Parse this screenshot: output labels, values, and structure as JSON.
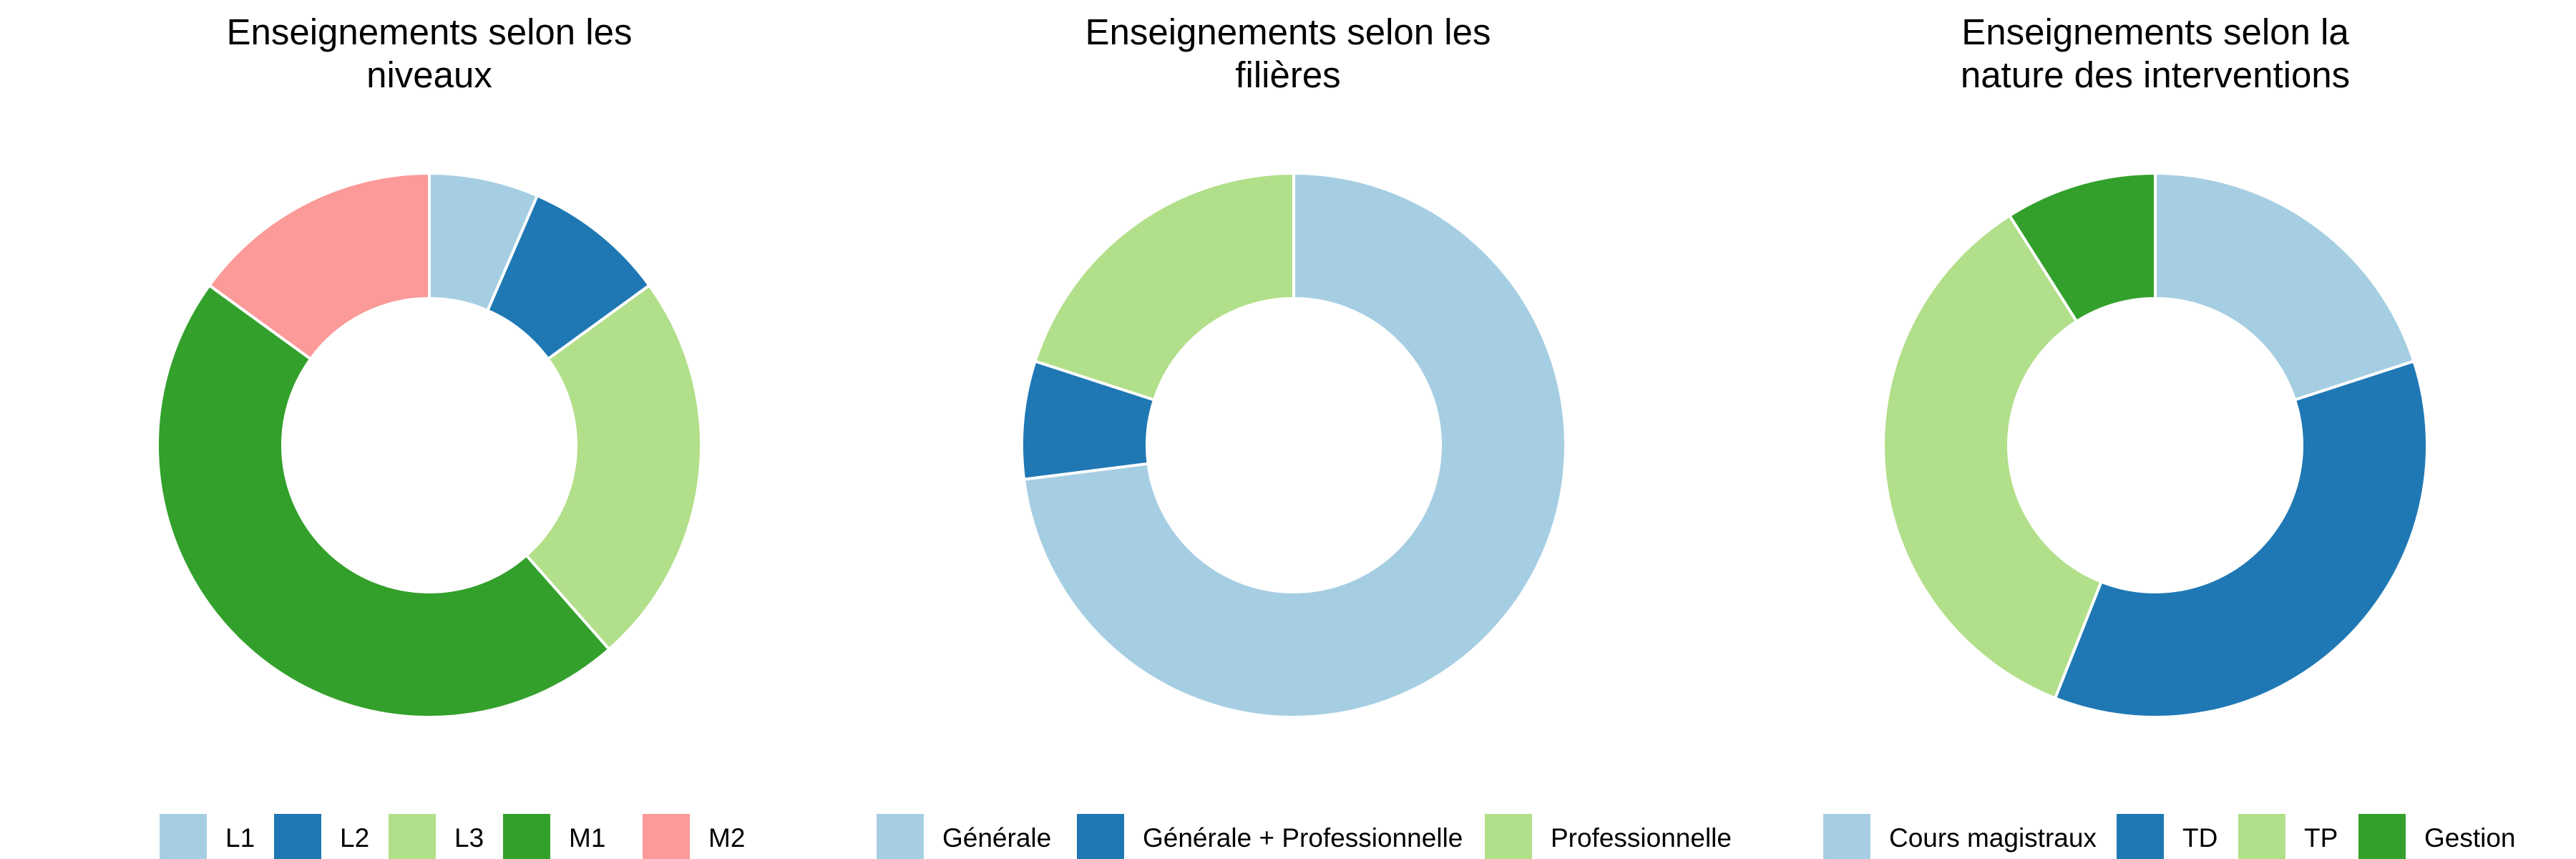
{
  "chart_data": [
    {
      "type": "pie",
      "title": "Enseignements selon les niveaux",
      "title_lines": [
        "Enseignements selon les",
        "niveaux"
      ],
      "categories": [
        "L1",
        "L2",
        "L3",
        "M1",
        "M2"
      ],
      "values": [
        6.5,
        8.5,
        23.5,
        46.5,
        15
      ],
      "colors": [
        "#A6CEE3",
        "#1F78B4",
        "#B2DF8A",
        "#33A02C",
        "#FB9A99"
      ],
      "legend_position": "bottom"
    },
    {
      "type": "pie",
      "title": "Enseignements selon les filières",
      "title_lines": [
        "Enseignements selon les",
        "filières"
      ],
      "categories": [
        "Générale",
        "Générale + Professionnelle",
        "Professionnelle"
      ],
      "values": [
        73,
        7,
        20
      ],
      "colors": [
        "#A6CEE3",
        "#1F78B4",
        "#B2DF8A"
      ],
      "legend_position": "bottom"
    },
    {
      "type": "pie",
      "title": "Enseignements selon la nature des interventions",
      "title_lines": [
        "Enseignements selon la",
        "nature des interventions"
      ],
      "categories": [
        "Cours magistraux",
        "TD",
        "TP",
        "Gestion"
      ],
      "values": [
        20,
        36,
        35,
        9
      ],
      "colors": [
        "#A6CEE3",
        "#1F78B4",
        "#B2DF8A",
        "#33A02C"
      ],
      "legend_position": "bottom"
    }
  ]
}
